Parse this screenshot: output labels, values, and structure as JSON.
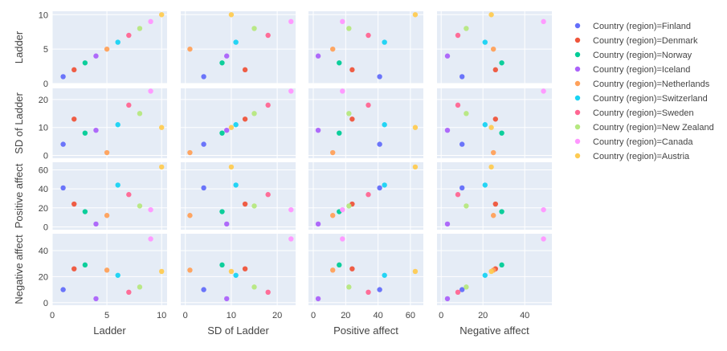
{
  "chart_data": {
    "type": "scatter",
    "subtype": "scatter-matrix",
    "dimensions": [
      "Ladder",
      "SD of Ladder",
      "Positive affect",
      "Negative affect"
    ],
    "axis_ranges": {
      "Ladder": [
        0,
        10.5
      ],
      "SD of Ladder": [
        -1,
        24
      ],
      "Positive affect": [
        -3,
        68
      ],
      "Negative affect": [
        -2,
        53
      ]
    },
    "axis_ticks": {
      "Ladder": [
        0,
        5,
        10
      ],
      "SD of Ladder": [
        0,
        10,
        20
      ],
      "Positive affect": [
        0,
        20,
        40,
        60
      ],
      "Negative affect": [
        0,
        20,
        40
      ]
    },
    "grid": true,
    "legend_position": "right",
    "legend_prefix": "Country (region)=",
    "series": [
      {
        "name": "Country (region)=Finland",
        "country": "Finland",
        "color": "#636efa",
        "values": {
          "Ladder": 1,
          "SD of Ladder": 4,
          "Positive affect": 41,
          "Negative affect": 10
        }
      },
      {
        "name": "Country (region)=Denmark",
        "country": "Denmark",
        "color": "#ef553b",
        "values": {
          "Ladder": 2,
          "SD of Ladder": 13,
          "Positive affect": 24,
          "Negative affect": 26
        }
      },
      {
        "name": "Country (region)=Norway",
        "country": "Norway",
        "color": "#00cc96",
        "values": {
          "Ladder": 3,
          "SD of Ladder": 8,
          "Positive affect": 16,
          "Negative affect": 29
        }
      },
      {
        "name": "Country (region)=Iceland",
        "country": "Iceland",
        "color": "#ab63fa",
        "values": {
          "Ladder": 4,
          "SD of Ladder": 9,
          "Positive affect": 3,
          "Negative affect": 3
        }
      },
      {
        "name": "Country (region)=Netherlands",
        "country": "Netherlands",
        "color": "#ffa15a",
        "values": {
          "Ladder": 5,
          "SD of Ladder": 1,
          "Positive affect": 12,
          "Negative affect": 25
        }
      },
      {
        "name": "Country (region)=Switzerland",
        "country": "Switzerland",
        "color": "#19d3f3",
        "values": {
          "Ladder": 6,
          "SD of Ladder": 11,
          "Positive affect": 44,
          "Negative affect": 21
        }
      },
      {
        "name": "Country (region)=Sweden",
        "country": "Sweden",
        "color": "#ff6692",
        "values": {
          "Ladder": 7,
          "SD of Ladder": 18,
          "Positive affect": 34,
          "Negative affect": 8
        }
      },
      {
        "name": "Country (region)=New Zealand",
        "country": "New Zealand",
        "color": "#b6e880",
        "values": {
          "Ladder": 8,
          "SD of Ladder": 15,
          "Positive affect": 22,
          "Negative affect": 12
        }
      },
      {
        "name": "Country (region)=Canada",
        "country": "Canada",
        "color": "#ff97ff",
        "values": {
          "Ladder": 9,
          "SD of Ladder": 23,
          "Positive affect": 18,
          "Negative affect": 49
        }
      },
      {
        "name": "Country (region)=Austria",
        "country": "Austria",
        "color": "#fecb52",
        "values": {
          "Ladder": 10,
          "SD of Ladder": 10,
          "Positive affect": 63,
          "Negative affect": 24
        }
      }
    ]
  }
}
